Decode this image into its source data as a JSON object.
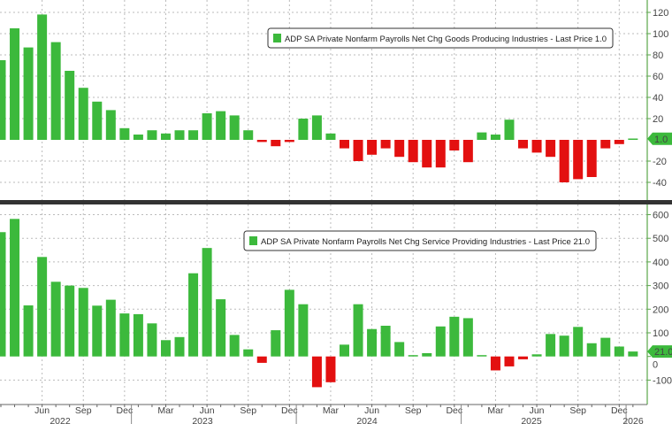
{
  "colors": {
    "positive": "#3cb93c",
    "negative": "#e31010",
    "axis": "#5aa64a",
    "divider": "#333333"
  },
  "x_labels": {
    "months": [
      "Jun",
      "Sep",
      "Dec",
      "Mar",
      "Jun",
      "Sep",
      "Dec",
      "Mar",
      "Jun",
      "Sep",
      "Dec",
      "Mar",
      "Jun",
      "Sep",
      "Dec"
    ],
    "years": [
      "2022",
      "2023",
      "2024",
      "2025",
      "2026"
    ]
  },
  "chart_data": [
    {
      "type": "bar",
      "title": "",
      "legend": "ADP SA Private Nonfarm Payrolls Net Chg Goods Producing Industries - Last Price 1.0",
      "legend_position": "top-right",
      "last_price_label": "1.0",
      "x_start": "2022-03",
      "x_end": "2026-01",
      "frequency": "monthly",
      "ylim": [
        -50,
        125
      ],
      "yticks": [
        -40,
        -20,
        20,
        40,
        60,
        80,
        100,
        120
      ],
      "grid": true,
      "axis_side": "right",
      "values": [
        75,
        105,
        87,
        118,
        92,
        65,
        49,
        36,
        28,
        11,
        5,
        9,
        6,
        9,
        9,
        25,
        27,
        23,
        9,
        -2,
        -6,
        -2,
        20,
        23,
        6,
        -8,
        -20,
        -14,
        -8,
        -16,
        -21,
        -26,
        -26,
        -10,
        -21,
        7,
        5,
        19,
        -8,
        -12,
        -16,
        -40,
        -37,
        -35,
        -8,
        -4,
        1
      ]
    },
    {
      "type": "bar",
      "title": "",
      "legend": "ADP SA Private Nonfarm Payrolls Net Chg Service Providing Industries - Last Price 21.0",
      "legend_position": "top-right",
      "last_price_label": "21.0",
      "x_start": "2022-03",
      "x_end": "2026-01",
      "frequency": "monthly",
      "ylim": [
        -200,
        620
      ],
      "yticks": [
        -100,
        0,
        100,
        200,
        300,
        400,
        500,
        600
      ],
      "grid": true,
      "axis_side": "right",
      "values": [
        526,
        582,
        216,
        421,
        316,
        300,
        290,
        215,
        240,
        182,
        179,
        140,
        69,
        82,
        352,
        459,
        242,
        91,
        30,
        -27,
        111,
        282,
        221,
        -130,
        -109,
        50,
        221,
        116,
        130,
        61,
        2,
        14,
        127,
        168,
        162,
        5,
        -59,
        -42,
        -12,
        9,
        95,
        88,
        125,
        56,
        79,
        42,
        21
      ]
    }
  ]
}
